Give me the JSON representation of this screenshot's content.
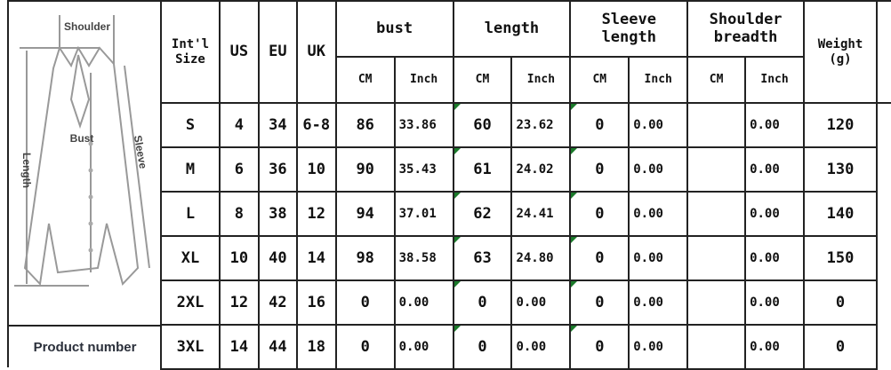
{
  "sketch": {
    "labels": {
      "shoulder": "Shoulder",
      "bust": "Bust",
      "length": "Length",
      "sleeve": "Sleeve"
    }
  },
  "product_number_label": "Product number",
  "headers": {
    "intl_size": "Int'l Size",
    "us": "US",
    "eu": "EU",
    "uk": "UK",
    "bust": "bust",
    "length": "length",
    "sleeve_length": "Sleeve length",
    "shoulder_breadth": "Shoulder breadth",
    "weight": "Weight (g)",
    "cm": "CM",
    "inch": "Inch"
  },
  "rows": [
    {
      "size": "S",
      "us": "4",
      "eu": "34",
      "uk": "6-8",
      "bust_cm": "86",
      "bust_in": "33.86",
      "len_cm": "60",
      "len_in": "23.62",
      "sl_cm": "0",
      "sl_in": "0.00",
      "sh_cm": "",
      "sh_in": "0.00",
      "weight": "120"
    },
    {
      "size": "M",
      "us": "6",
      "eu": "36",
      "uk": "10",
      "bust_cm": "90",
      "bust_in": "35.43",
      "len_cm": "61",
      "len_in": "24.02",
      "sl_cm": "0",
      "sl_in": "0.00",
      "sh_cm": "",
      "sh_in": "0.00",
      "weight": "130"
    },
    {
      "size": "L",
      "us": "8",
      "eu": "38",
      "uk": "12",
      "bust_cm": "94",
      "bust_in": "37.01",
      "len_cm": "62",
      "len_in": "24.41",
      "sl_cm": "0",
      "sl_in": "0.00",
      "sh_cm": "",
      "sh_in": "0.00",
      "weight": "140"
    },
    {
      "size": "XL",
      "us": "10",
      "eu": "40",
      "uk": "14",
      "bust_cm": "98",
      "bust_in": "38.58",
      "len_cm": "63",
      "len_in": "24.80",
      "sl_cm": "0",
      "sl_in": "0.00",
      "sh_cm": "",
      "sh_in": "0.00",
      "weight": "150"
    },
    {
      "size": "2XL",
      "us": "12",
      "eu": "42",
      "uk": "16",
      "bust_cm": "0",
      "bust_in": "0.00",
      "len_cm": "0",
      "len_in": "0.00",
      "sl_cm": "0",
      "sl_in": "0.00",
      "sh_cm": "",
      "sh_in": "0.00",
      "weight": "0"
    },
    {
      "size": "3XL",
      "us": "14",
      "eu": "44",
      "uk": "18",
      "bust_cm": "0",
      "bust_in": "0.00",
      "len_cm": "0",
      "len_in": "0.00",
      "sl_cm": "0",
      "sl_in": "0.00",
      "sh_cm": "",
      "sh_in": "0.00",
      "weight": "0"
    }
  ]
}
